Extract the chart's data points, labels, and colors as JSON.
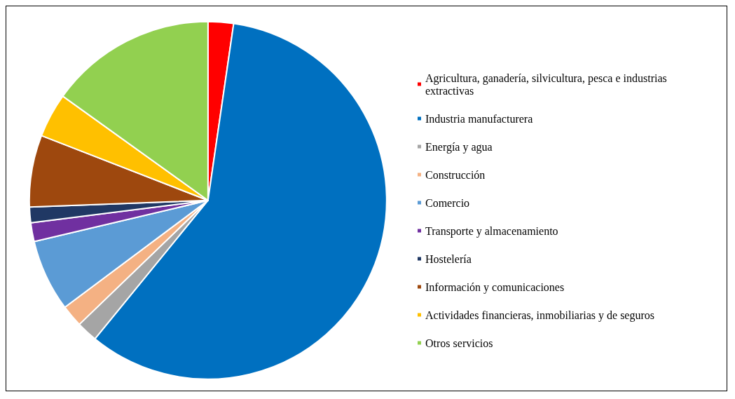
{
  "chart_data": {
    "type": "pie",
    "categories": [
      "Agricultura, ganadería, silvicultura, pesca e industrias extractivas",
      "Industria manufacturera",
      "Energía y agua",
      "Construcción",
      "Comercio",
      "Transporte y almacenamiento",
      "Hostelería",
      "Información y comunicaciones",
      "Actividades financieras, inmobiliarias y de seguros",
      "Otros servicios"
    ],
    "values": [
      2.3,
      58.6,
      1.9,
      2.0,
      6.5,
      1.7,
      1.4,
      6.5,
      4.0,
      15.1
    ],
    "colors": [
      "#ff0000",
      "#0070c0",
      "#a5a5a5",
      "#f4b183",
      "#5b9bd5",
      "#7030a0",
      "#203864",
      "#9e480e",
      "#ffc000",
      "#92d050"
    ],
    "legend": "right"
  }
}
